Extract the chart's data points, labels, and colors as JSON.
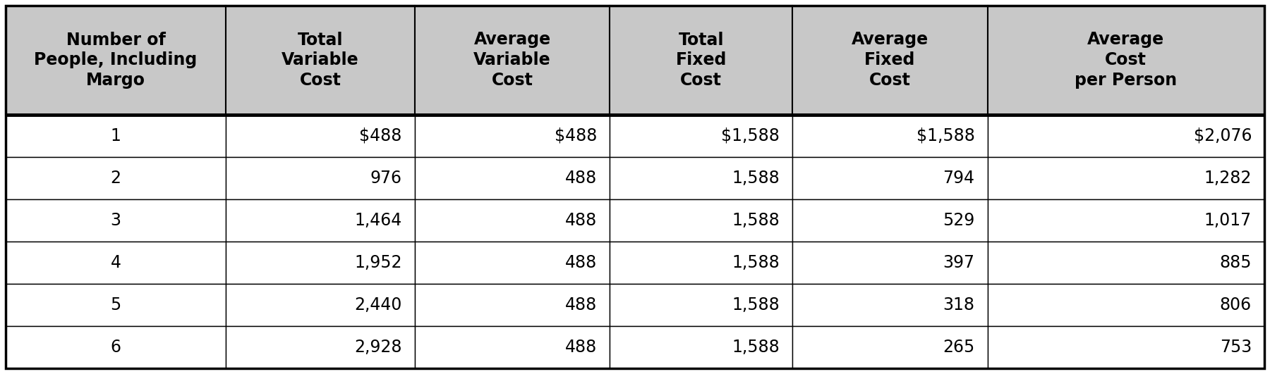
{
  "headers": [
    "Number of\nPeople, Including\nMargo",
    "Total\nVariable\nCost",
    "Average\nVariable\nCost",
    "Total\nFixed\nCost",
    "Average\nFixed\nCost",
    "Average\nCost\nper Person"
  ],
  "rows": [
    [
      "1",
      "$488",
      "$488",
      "$1,588",
      "$1,588",
      "$2,076"
    ],
    [
      "2",
      "976",
      "488",
      "1,588",
      "794",
      "1,282"
    ],
    [
      "3",
      "1,464",
      "488",
      "1,588",
      "529",
      "1,017"
    ],
    [
      "4",
      "1,952",
      "488",
      "1,588",
      "397",
      "885"
    ],
    [
      "5",
      "2,440",
      "488",
      "1,588",
      "318",
      "806"
    ],
    [
      "6",
      "2,928",
      "488",
      "1,588",
      "265",
      "753"
    ]
  ],
  "header_bg_color": "#c8c8c8",
  "row_bg_color": "#ffffff",
  "header_text_color": "#000000",
  "row_text_color": "#000000",
  "border_color": "#000000",
  "header_fontsize": 17,
  "row_fontsize": 17,
  "fig_width": 18.0,
  "fig_height": 5.31,
  "dpi": 100
}
